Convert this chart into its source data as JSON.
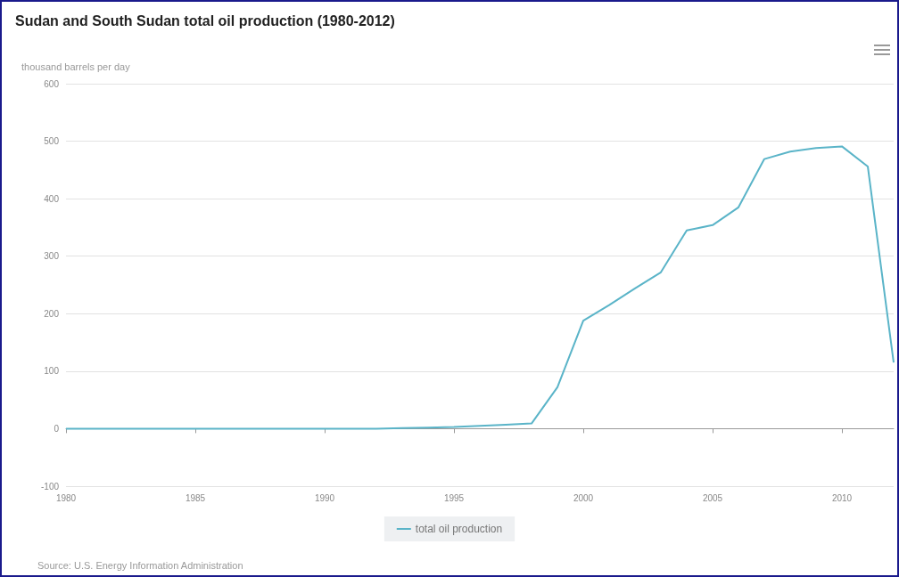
{
  "chart_data": {
    "type": "line",
    "title": "Sudan and South Sudan total oil production (1980-2012)",
    "ylabel": "thousand barrels per day",
    "x": [
      1980,
      1981,
      1982,
      1983,
      1984,
      1985,
      1986,
      1987,
      1988,
      1989,
      1990,
      1991,
      1992,
      1993,
      1994,
      1995,
      1996,
      1997,
      1998,
      1999,
      2000,
      2001,
      2002,
      2003,
      2004,
      2005,
      2006,
      2007,
      2008,
      2009,
      2010,
      2011,
      2012
    ],
    "series": [
      {
        "name": "total oil production",
        "color": "#5ab4c8",
        "values": [
          0,
          0,
          0,
          0,
          0,
          0,
          0,
          0,
          0,
          0,
          0,
          0,
          0,
          1,
          2,
          3,
          5,
          7,
          9,
          72,
          188,
          215,
          244,
          272,
          345,
          354,
          385,
          469,
          482,
          488,
          491,
          456,
          115
        ]
      }
    ],
    "xlim": [
      1980,
      2012
    ],
    "xticks": [
      1980,
      1985,
      1990,
      1995,
      2000,
      2005,
      2010
    ],
    "ylim": [
      -100,
      600
    ],
    "yticks": [
      -100,
      0,
      100,
      200,
      300,
      400,
      500,
      600
    ],
    "grid": "y",
    "legend": "bottom",
    "marker": "none",
    "line_style": "solid",
    "annotations": [
      "Source: U.S. Energy Information Administration"
    ]
  }
}
